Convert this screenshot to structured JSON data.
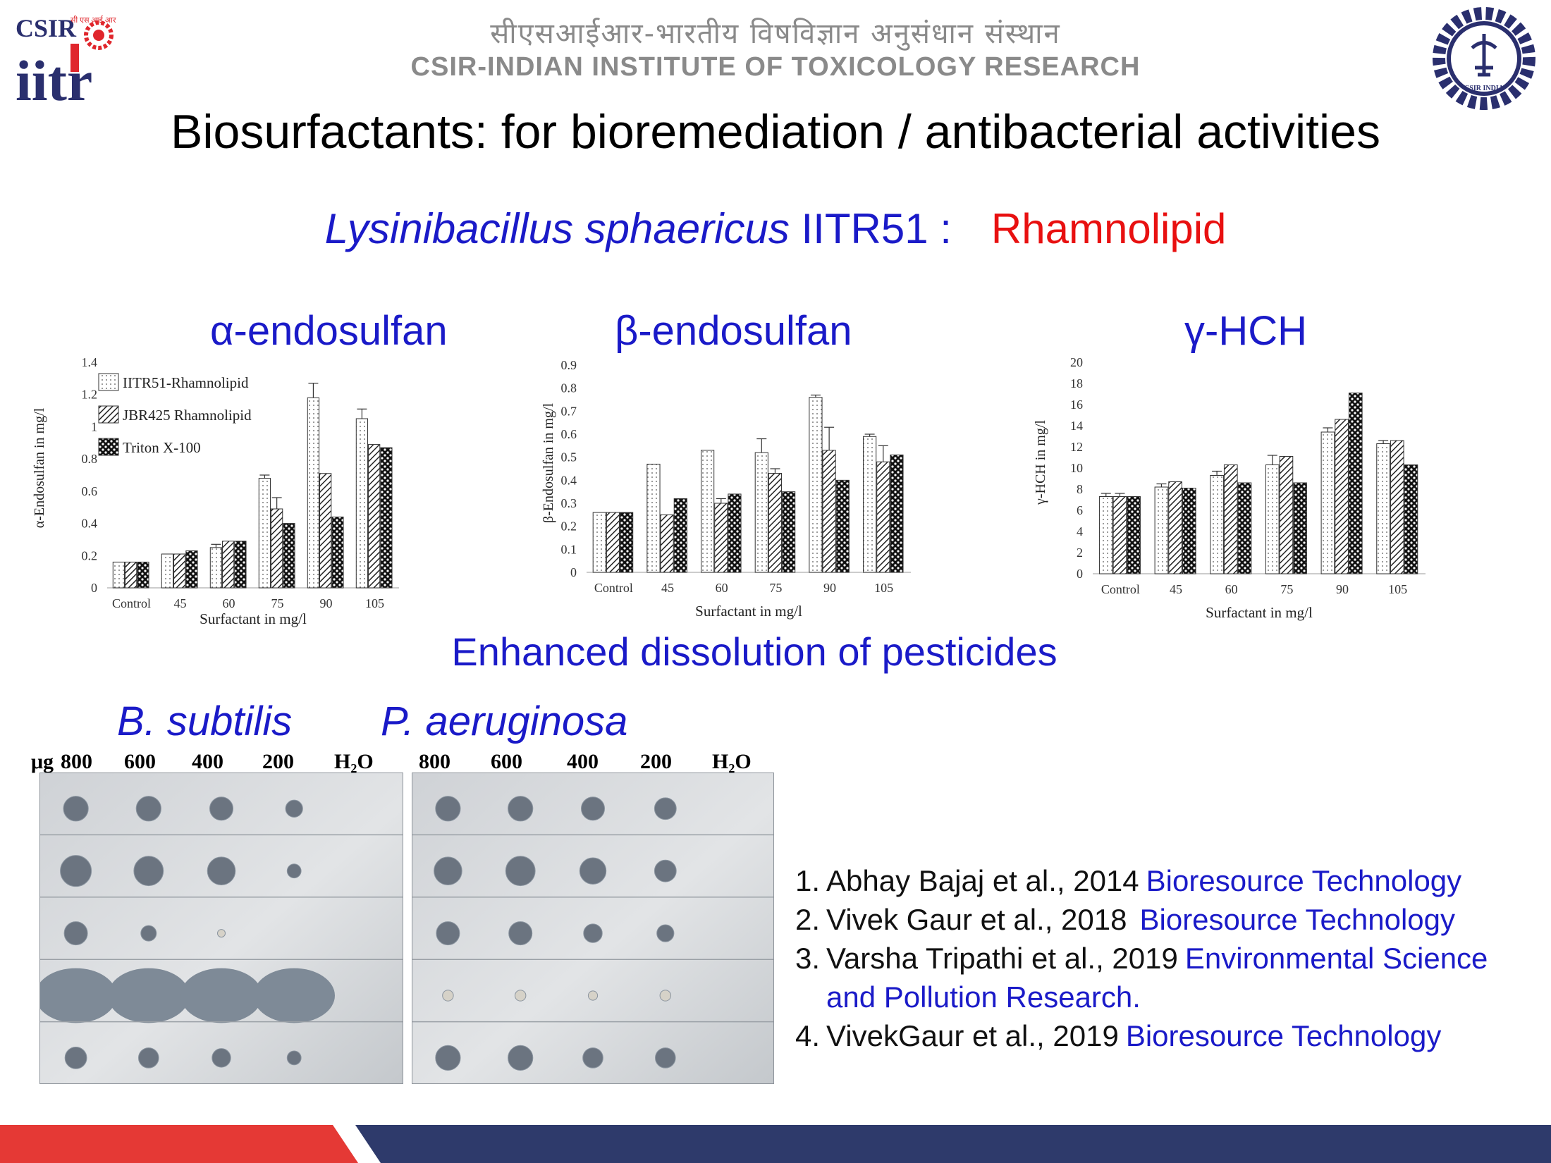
{
  "header": {
    "logo_left": {
      "csir": "CSIR",
      "iitr": "iitr",
      "small": "सी एस आई आर"
    },
    "hindi": "सीएसआईआर-भारतीय विषविज्ञान अनुसंधान संस्थान",
    "english": "CSIR-INDIAN INSTITUTE OF TOXICOLOGY RESEARCH",
    "logo_right": {
      "text": "CSIR INDIA"
    }
  },
  "title": "Biosurfactants: for bioremediation / antibacterial activities",
  "subtitle": {
    "species": "Lysinibacillus sphaericus",
    "strain": " IITR51 :",
    "product": "Rhamnolipid"
  },
  "chart_headings": [
    "α-endosulfan",
    "β-endosulfan",
    "γ-HCH"
  ],
  "chart_data": [
    {
      "type": "bar",
      "categories": [
        "Control",
        "45",
        "60",
        "75",
        "90",
        "105"
      ],
      "series": [
        {
          "name": "IITR51-Rhamnolipid",
          "values": [
            0.16,
            0.21,
            0.25,
            0.68,
            1.18,
            1.05
          ],
          "errors": [
            0.0,
            0.0,
            0.02,
            0.02,
            0.09,
            0.06
          ]
        },
        {
          "name": "JBR425 Rhamnolipid",
          "values": [
            0.16,
            0.21,
            0.29,
            0.49,
            0.71,
            0.89
          ],
          "errors": [
            0.0,
            0.0,
            0.0,
            0.07,
            0.0,
            0.0
          ]
        },
        {
          "name": "Triton X-100",
          "values": [
            0.16,
            0.23,
            0.29,
            0.4,
            0.44,
            0.87
          ],
          "errors": [
            0.0,
            0.0,
            0.0,
            0.0,
            0.0,
            0.0
          ]
        }
      ],
      "xlabel": "Surfactant  in mg/l",
      "ylabel": "α-Endosulfan  in mg/l",
      "ylim": [
        0,
        1.4
      ],
      "yticks": [
        "0",
        "0.2",
        "0.4",
        "0.6",
        "0.8",
        "1",
        "1.2",
        "1.4"
      ],
      "legend": "top-left"
    },
    {
      "type": "bar",
      "categories": [
        "Control",
        "45",
        "60",
        "75",
        "90",
        "105"
      ],
      "series": [
        {
          "values": [
            0.26,
            0.47,
            0.53,
            0.52,
            0.76,
            0.59
          ],
          "errors": [
            0.0,
            0.0,
            0.0,
            0.06,
            0.01,
            0.01
          ]
        },
        {
          "values": [
            0.26,
            0.25,
            0.3,
            0.43,
            0.53,
            0.48
          ],
          "errors": [
            0.0,
            0.0,
            0.02,
            0.02,
            0.1,
            0.07
          ]
        },
        {
          "values": [
            0.26,
            0.32,
            0.34,
            0.35,
            0.4,
            0.51
          ],
          "errors": [
            0.0,
            0.0,
            0.0,
            0.0,
            0.0,
            0.0
          ]
        }
      ],
      "xlabel": "Surfactant  in mg/l",
      "ylabel": "β-Endosulfan  in mg/l",
      "ylim": [
        0,
        0.9
      ],
      "yticks": [
        "0",
        "0.1",
        "0.2",
        "0.3",
        "0.4",
        "0.5",
        "0.6",
        "0.7",
        "0.8",
        "0.9"
      ],
      "legend": "none"
    },
    {
      "type": "bar",
      "categories": [
        "Control",
        "45",
        "60",
        "75",
        "90",
        "105"
      ],
      "series": [
        {
          "values": [
            7.3,
            8.2,
            9.3,
            10.3,
            13.4,
            12.3
          ],
          "errors": [
            0.3,
            0.3,
            0.4,
            0.9,
            0.4,
            0.3
          ]
        },
        {
          "values": [
            7.3,
            8.7,
            10.3,
            11.1,
            14.6,
            12.6
          ],
          "errors": [
            0.3,
            0.0,
            0.0,
            0.0,
            0.0,
            0.0
          ]
        },
        {
          "values": [
            7.3,
            8.1,
            8.6,
            8.6,
            17.1,
            10.3
          ],
          "errors": [
            0.0,
            0.0,
            0.0,
            0.0,
            0.0,
            0.0
          ]
        }
      ],
      "xlabel": "Surfactant  in mg/l",
      "ylabel": "γ-HCH  in mg/l",
      "ylim": [
        0,
        20
      ],
      "yticks": [
        "0",
        "2",
        "4",
        "6",
        "8",
        "10",
        "12",
        "14",
        "16",
        "18",
        "20"
      ],
      "legend": "none"
    }
  ],
  "caption": "Enhanced dissolution of pesticides",
  "organisms": [
    "B. subtilis",
    "P. aeruginosa"
  ],
  "doses": {
    "unit": "μg",
    "left": [
      "800",
      "600",
      "400",
      "200",
      "H₂O"
    ],
    "right": [
      "800",
      "600",
      "400",
      "200",
      "H₂O"
    ]
  },
  "plates": [
    {
      "organism": "B. subtilis",
      "rows": [
        [
          0.8,
          0.8,
          0.75,
          0.55,
          0
        ],
        [
          1.0,
          0.95,
          0.9,
          0.45,
          0
        ],
        [
          0.75,
          0.5,
          0.25,
          0,
          0
        ],
        [
          2.0,
          2.0,
          2.0,
          2.0,
          0
        ],
        [
          0.7,
          0.65,
          0.6,
          0.45,
          0
        ]
      ]
    },
    {
      "organism": "P. aeruginosa",
      "rows": [
        [
          0.8,
          0.8,
          0.75,
          0.7,
          0
        ],
        [
          0.9,
          0.95,
          0.85,
          0.7,
          0
        ],
        [
          0.75,
          0.75,
          0.6,
          0.55,
          0
        ],
        [
          0.35,
          0.35,
          0.3,
          0.35,
          0
        ],
        [
          0.8,
          0.8,
          0.65,
          0.65,
          0
        ]
      ]
    }
  ],
  "references": [
    {
      "num": "1.",
      "text": "Abhay Bajaj et al., 2014 ",
      "journal": "Bioresource Technology",
      "cont": ""
    },
    {
      "num": "2.",
      "text": "Vivek Gaur et al., 2018  ",
      "journal": "Bioresource Technology",
      "cont": ""
    },
    {
      "num": "3.",
      "text": "Varsha Tripathi et al., 2019 ",
      "journal": "Environmental Science",
      "cont": "and Pollution Research."
    },
    {
      "num": "4.",
      "text": " VivekGaur et al., 2019  ",
      "journal": "Bioresource Technology",
      "cont": ""
    }
  ],
  "colors": {
    "blue_text": "#1a1ac8",
    "red_text": "#e81010",
    "footer_red": "#e53935",
    "footer_navy": "#2e3a6b",
    "header_grey": "#8a8a8a",
    "logo_red": "#e0262c",
    "logo_navy": "#2a2f6e"
  }
}
